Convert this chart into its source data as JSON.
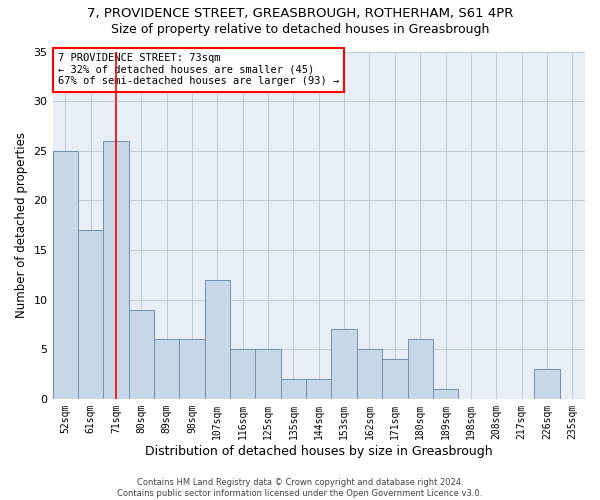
{
  "title_line1": "7, PROVIDENCE STREET, GREASBROUGH, ROTHERHAM, S61 4PR",
  "title_line2": "Size of property relative to detached houses in Greasbrough",
  "xlabel": "Distribution of detached houses by size in Greasbrough",
  "ylabel": "Number of detached properties",
  "categories": [
    "52sqm",
    "61sqm",
    "71sqm",
    "80sqm",
    "89sqm",
    "98sqm",
    "107sqm",
    "116sqm",
    "125sqm",
    "135sqm",
    "144sqm",
    "153sqm",
    "162sqm",
    "171sqm",
    "180sqm",
    "189sqm",
    "198sqm",
    "208sqm",
    "217sqm",
    "226sqm",
    "235sqm"
  ],
  "values": [
    25,
    17,
    26,
    9,
    6,
    6,
    12,
    5,
    5,
    2,
    2,
    7,
    5,
    4,
    6,
    1,
    0,
    0,
    0,
    3,
    0
  ],
  "bar_color": "#c8d8e8",
  "bar_edge_color": "#7090b0",
  "grid_color": "#c0c8d8",
  "background_color": "#e8eef5",
  "annotation_box_text": "7 PROVIDENCE STREET: 73sqm\n← 32% of detached houses are smaller (45)\n67% of semi-detached houses are larger (93) →",
  "red_line_x": 2,
  "ylim": [
    0,
    35
  ],
  "yticks": [
    0,
    5,
    10,
    15,
    20,
    25,
    30,
    35
  ],
  "footer_text": "Contains HM Land Registry data © Crown copyright and database right 2024.\nContains public sector information licensed under the Open Government Licence v3.0.",
  "title_fontsize": 9.5,
  "subtitle_fontsize": 9,
  "xlabel_fontsize": 9,
  "ylabel_fontsize": 8.5
}
